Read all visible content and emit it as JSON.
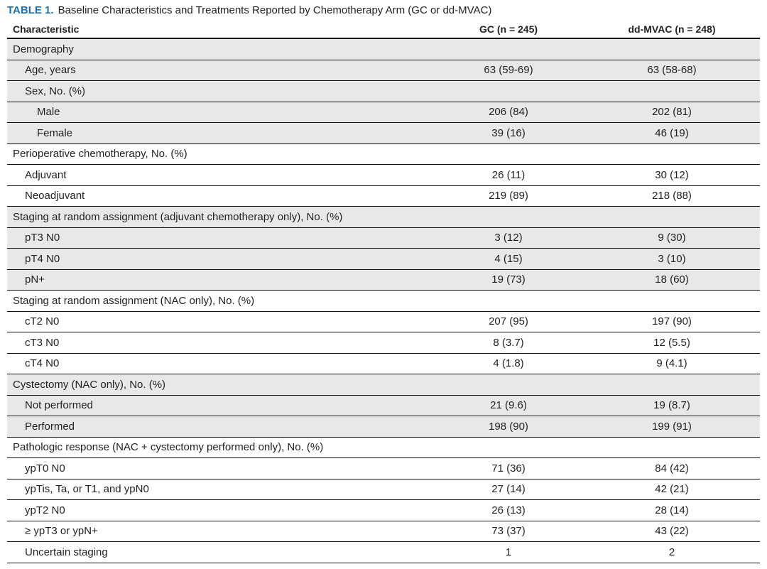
{
  "table": {
    "caption": {
      "label": "TABLE 1.",
      "title": "Baseline Characteristics and Treatments Reported by Chemotherapy Arm (GC or dd-MVAC)"
    },
    "header": [
      "Characteristic",
      "GC (n = 245)",
      "dd-MVAC (n = 248)"
    ],
    "sections": [
      {
        "title": "Demography",
        "rows": [
          {
            "cells": [
              "Age, years",
              "63 (59-69)",
              "63 (58-68)"
            ]
          },
          {
            "cells": [
              "Sex, No. (%)"
            ],
            "rows": [
              {
                "cells": [
                  "Male",
                  "206 (84)",
                  "202 (81)"
                ]
              },
              {
                "cells": [
                  "Female",
                  "39 (16)",
                  "46 (19)"
                ]
              }
            ]
          }
        ]
      },
      {
        "title": "Perioperative chemotherapy, No. (%)",
        "rows": [
          {
            "cells": [
              "Adjuvant",
              "26 (11)",
              "30 (12)"
            ]
          },
          {
            "cells": [
              "Neoadjuvant",
              "219 (89)",
              "218 (88)"
            ]
          }
        ]
      },
      {
        "title": "Staging at random assignment (adjuvant chemotherapy only), No. (%)",
        "rows": [
          {
            "cells": [
              "pT3 N0",
              "3 (12)",
              "9 (30)"
            ]
          },
          {
            "cells": [
              "pT4 N0",
              "4 (15)",
              "3 (10)"
            ]
          },
          {
            "cells": [
              "pN+",
              "19 (73)",
              "18 (60)"
            ]
          }
        ]
      },
      {
        "title": "Staging at random assignment (NAC only), No. (%)",
        "rows": [
          {
            "cells": [
              "cT2 N0",
              "207 (95)",
              "197 (90)"
            ]
          },
          {
            "cells": [
              "cT3 N0",
              "8 (3.7)",
              "12 (5.5)"
            ]
          },
          {
            "cells": [
              "cT4 N0",
              "4 (1.8)",
              "9 (4.1)"
            ]
          }
        ]
      },
      {
        "title": "Cystectomy (NAC only), No. (%)",
        "rows": [
          {
            "cells": [
              "Not performed",
              "21 (9.6)",
              "19 (8.7)"
            ]
          },
          {
            "cells": [
              "Performed",
              "198 (90)",
              "199 (91)"
            ]
          }
        ]
      },
      {
        "title": "Pathologic response (NAC + cystectomy performed only), No. (%)",
        "rows": [
          {
            "cells": [
              "ypT0 N0",
              "71 (36)",
              "84 (42)"
            ]
          },
          {
            "cells": [
              "ypTis, Ta, or T1, and ypN0",
              "27 (14)",
              "42 (21)"
            ]
          },
          {
            "cells": [
              "ypT2 N0",
              "26 (13)",
              "28 (14)"
            ]
          },
          {
            "cells": [
              "≥ ypT3 or ypN+",
              "73 (37)",
              "43 (22)"
            ]
          },
          {
            "cells": [
              "Uncertain staging",
              "1",
              "2"
            ]
          }
        ]
      }
    ]
  }
}
